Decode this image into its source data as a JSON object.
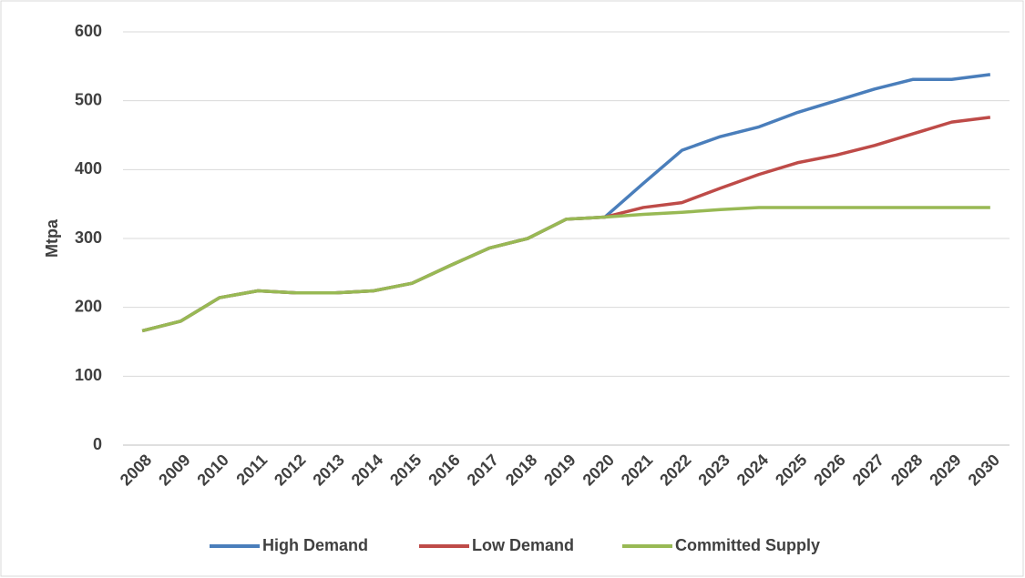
{
  "chart_data": {
    "type": "line",
    "y_label": "Mtpa",
    "categories": [
      "2008",
      "2009",
      "2010",
      "2011",
      "2012",
      "2013",
      "2014",
      "2015",
      "2016",
      "2017",
      "2018",
      "2019",
      "2020",
      "2021",
      "2022",
      "2023",
      "2024",
      "2025",
      "2026",
      "2027",
      "2028",
      "2029",
      "2030"
    ],
    "series": [
      {
        "name": "High Demand",
        "color": "#4a7ebb",
        "values": [
          166,
          180,
          214,
          224,
          221,
          221,
          224,
          235,
          261,
          286,
          300,
          328,
          331,
          380,
          428,
          448,
          462,
          483,
          500,
          517,
          531,
          531,
          538
        ]
      },
      {
        "name": "Low Demand",
        "color": "#be4b48",
        "values": [
          166,
          180,
          214,
          224,
          221,
          221,
          224,
          235,
          261,
          286,
          300,
          328,
          331,
          345,
          352,
          373,
          393,
          410,
          421,
          435,
          452,
          469,
          476
        ]
      },
      {
        "name": "Committed Supply",
        "color": "#98b954",
        "values": [
          166,
          180,
          214,
          224,
          221,
          221,
          224,
          235,
          261,
          286,
          300,
          328,
          331,
          335,
          338,
          342,
          345,
          345,
          345,
          345,
          345,
          345,
          345
        ]
      }
    ],
    "ylim": [
      0,
      600
    ],
    "yticks": [
      0,
      100,
      200,
      300,
      400,
      500,
      600
    ],
    "grid": true,
    "legend": "bottom"
  }
}
